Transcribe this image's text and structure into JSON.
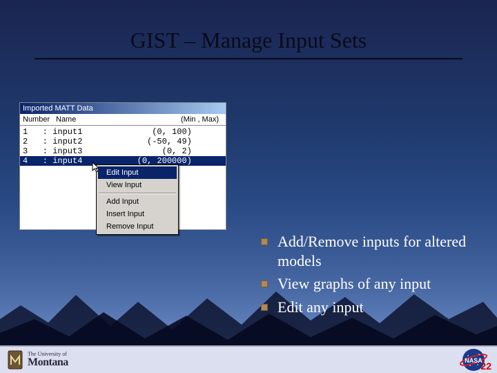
{
  "slide": {
    "title": "GIST – Manage Input Sets",
    "page_number": "22"
  },
  "window": {
    "title": "Imported MATT Data",
    "columns": {
      "number": "Number",
      "name": "Name",
      "range": "(Min , Max)"
    },
    "rows": [
      {
        "num": "1",
        "name": "input1",
        "range": "(0, 100)",
        "selected": false
      },
      {
        "num": "2",
        "name": "input2",
        "range": "(-50, 49)",
        "selected": false
      },
      {
        "num": "3",
        "name": "input3",
        "range": "(0, 2)",
        "selected": false
      },
      {
        "num": "4",
        "name": "input4",
        "range": "(0, 200000)",
        "selected": true
      }
    ]
  },
  "context_menu": {
    "items": [
      {
        "label": "Edit Input",
        "highlighted": true
      },
      {
        "label": "View Input",
        "highlighted": false
      },
      {
        "separator": true
      },
      {
        "label": "Add Input",
        "highlighted": false
      },
      {
        "label": "Insert Input",
        "highlighted": false
      },
      {
        "label": "Remove Input",
        "highlighted": false
      }
    ]
  },
  "bullets": [
    "Add/Remove inputs for altered models",
    "View graphs of any input",
    "Edit any input"
  ],
  "footer": {
    "univ_small": "The University of",
    "univ_large": "Montana",
    "nasa": "NASA"
  },
  "colors": {
    "bullet_square": "#b0885a",
    "titlebar_start": "#0a246a",
    "titlebar_end": "#a6caf0",
    "selection": "#0a246a",
    "footer_bg": "#dcdff0",
    "pagenum": "#c00"
  }
}
